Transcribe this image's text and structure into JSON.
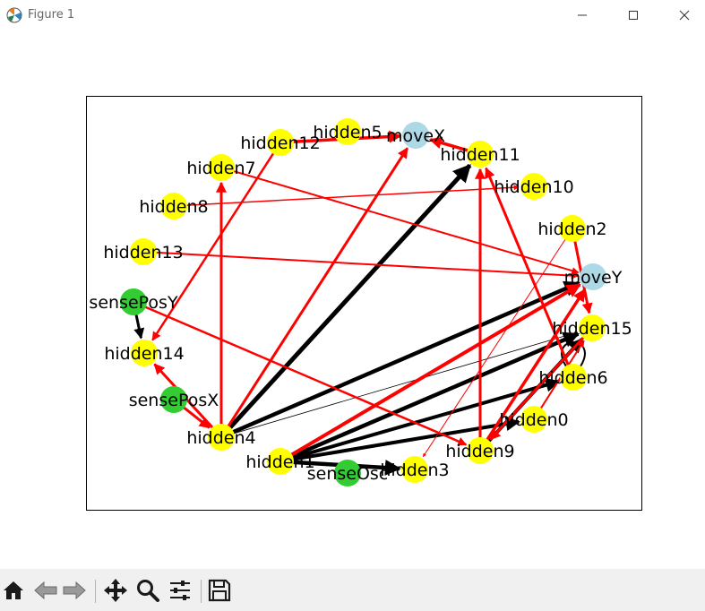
{
  "window": {
    "title": "Figure 1"
  },
  "toolbar": {
    "buttons": [
      {
        "name": "home-button",
        "icon": "home-icon"
      },
      {
        "name": "back-button",
        "icon": "back-arrow-icon"
      },
      {
        "name": "forward-button",
        "icon": "forward-arrow-icon"
      },
      {
        "name": "pan-button",
        "icon": "move-icon"
      },
      {
        "name": "zoom-button",
        "icon": "magnifier-icon"
      },
      {
        "name": "configure-subplots-button",
        "icon": "sliders-icon"
      },
      {
        "name": "save-button",
        "icon": "floppy-disk-icon"
      }
    ]
  },
  "colors": {
    "hidden": "#ffff00",
    "output": "#add8e6",
    "sensor": "#33cc33",
    "edge_positive": "#000000",
    "edge_negative": "#ff0000"
  },
  "graph": {
    "nodes": [
      {
        "id": "hidden5",
        "label": "hidden5",
        "kind": "hidden"
      },
      {
        "id": "moveX",
        "label": "moveX",
        "kind": "output"
      },
      {
        "id": "hidden12",
        "label": "hidden12",
        "kind": "hidden"
      },
      {
        "id": "hidden11",
        "label": "hidden11",
        "kind": "hidden"
      },
      {
        "id": "hidden7",
        "label": "hidden7",
        "kind": "hidden"
      },
      {
        "id": "hidden10",
        "label": "hidden10",
        "kind": "hidden"
      },
      {
        "id": "hidden8",
        "label": "hidden8",
        "kind": "hidden"
      },
      {
        "id": "hidden2",
        "label": "hidden2",
        "kind": "hidden"
      },
      {
        "id": "hidden13",
        "label": "hidden13",
        "kind": "hidden"
      },
      {
        "id": "moveY",
        "label": "moveY",
        "kind": "output"
      },
      {
        "id": "sensePosY",
        "label": "sensePosY",
        "kind": "sensor"
      },
      {
        "id": "hidden15",
        "label": "hidden15",
        "kind": "hidden"
      },
      {
        "id": "hidden14",
        "label": "hidden14",
        "kind": "hidden"
      },
      {
        "id": "hidden6",
        "label": "hidden6",
        "kind": "hidden"
      },
      {
        "id": "sensePosX",
        "label": "sensePosX",
        "kind": "sensor"
      },
      {
        "id": "hidden0",
        "label": "hidden0",
        "kind": "hidden"
      },
      {
        "id": "hidden4",
        "label": "hidden4",
        "kind": "hidden"
      },
      {
        "id": "hidden9",
        "label": "hidden9",
        "kind": "hidden"
      },
      {
        "id": "hidden1",
        "label": "hidden1",
        "kind": "hidden"
      },
      {
        "id": "senseOsc",
        "label": "senseOsc",
        "kind": "sensor"
      },
      {
        "id": "hidden3",
        "label": "hidden3",
        "kind": "hidden"
      }
    ],
    "edges": [
      {
        "from": "hidden4",
        "to": "hidden11",
        "sign": "positive",
        "weight": 5
      },
      {
        "from": "hidden4",
        "to": "moveY",
        "sign": "positive",
        "weight": 4.5
      },
      {
        "from": "hidden4",
        "to": "hidden15",
        "sign": "positive",
        "weight": 0.8
      },
      {
        "from": "hidden1",
        "to": "hidden15",
        "sign": "positive",
        "weight": 4.5
      },
      {
        "from": "hidden1",
        "to": "hidden6",
        "sign": "positive",
        "weight": 4
      },
      {
        "from": "hidden1",
        "to": "hidden0",
        "sign": "positive",
        "weight": 4
      },
      {
        "from": "hidden1",
        "to": "hidden3",
        "sign": "positive",
        "weight": 4.5
      },
      {
        "from": "hidden9",
        "to": "hidden15",
        "sign": "positive",
        "weight": 4
      },
      {
        "from": "sensePosY",
        "to": "hidden14",
        "sign": "positive",
        "weight": 3
      },
      {
        "from": "hidden6",
        "to": "hidden6",
        "sign": "positive",
        "weight": 2
      },
      {
        "from": "hidden4",
        "to": "moveX",
        "sign": "negative",
        "weight": 3
      },
      {
        "from": "hidden4",
        "to": "hidden7",
        "sign": "negative",
        "weight": 3
      },
      {
        "from": "hidden4",
        "to": "hidden14",
        "sign": "negative",
        "weight": 3
      },
      {
        "from": "hidden1",
        "to": "moveY",
        "sign": "negative",
        "weight": 4
      },
      {
        "from": "hidden9",
        "to": "moveY",
        "sign": "negative",
        "weight": 3.5
      },
      {
        "from": "hidden9",
        "to": "hidden11",
        "sign": "negative",
        "weight": 3
      },
      {
        "from": "hidden2",
        "to": "hidden15",
        "sign": "negative",
        "weight": 3
      },
      {
        "from": "hidden12",
        "to": "hidden14",
        "sign": "negative",
        "weight": 2.5
      },
      {
        "from": "hidden12",
        "to": "moveX",
        "sign": "negative",
        "weight": 3.5
      },
      {
        "from": "hidden11",
        "to": "moveX",
        "sign": "negative",
        "weight": 3.5
      },
      {
        "from": "hidden7",
        "to": "moveY",
        "sign": "negative",
        "weight": 2
      },
      {
        "from": "hidden13",
        "to": "moveY",
        "sign": "negative",
        "weight": 2
      },
      {
        "from": "hidden8",
        "to": "hidden10",
        "sign": "negative",
        "weight": 1.5
      },
      {
        "from": "sensePosY",
        "to": "hidden9",
        "sign": "negative",
        "weight": 2.5
      },
      {
        "from": "hidden15",
        "to": "hidden9",
        "sign": "negative",
        "weight": 3
      },
      {
        "from": "sensePosX",
        "to": "hidden4",
        "sign": "negative",
        "weight": 3
      },
      {
        "from": "hidden2",
        "to": "hidden3",
        "sign": "negative",
        "weight": 1
      },
      {
        "from": "hidden6",
        "to": "hidden11",
        "sign": "negative",
        "weight": 3
      },
      {
        "from": "hidden0",
        "to": "hidden15",
        "sign": "negative",
        "weight": 2
      }
    ]
  }
}
